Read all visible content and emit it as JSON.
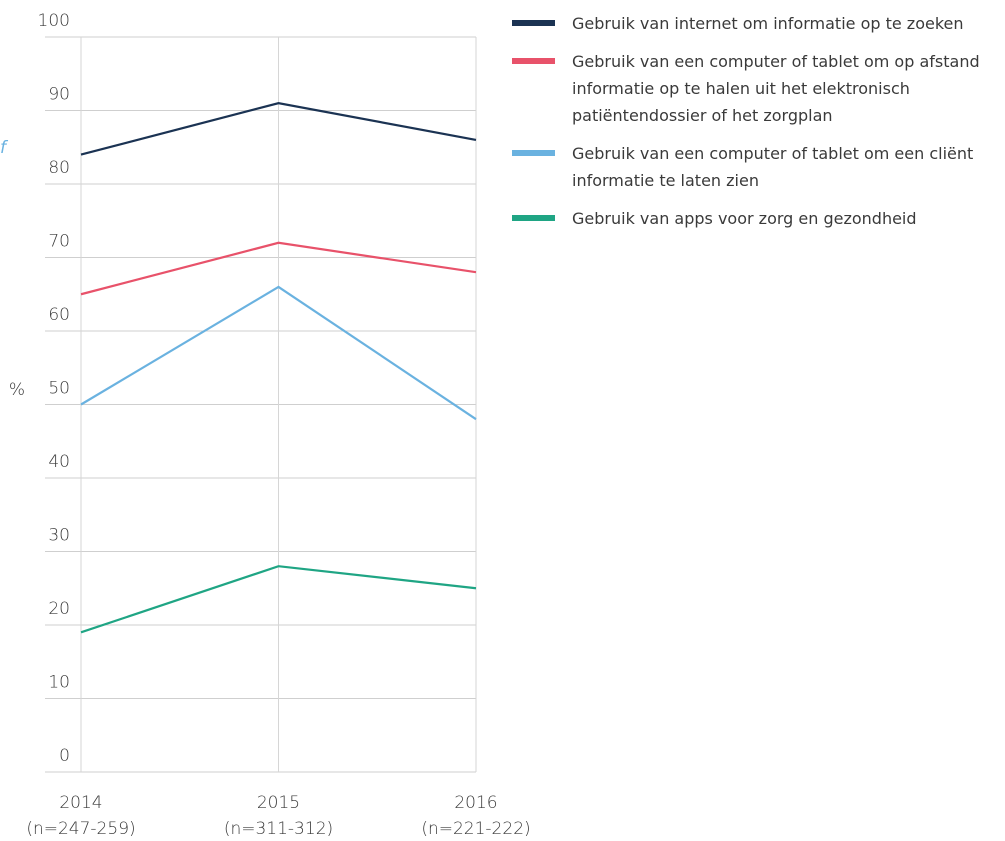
{
  "chart_data": {
    "type": "line",
    "y_label": "%",
    "annotation": "f",
    "categories": [
      "2014",
      "2015",
      "2016"
    ],
    "sample_sizes": [
      "(n=247-259)",
      "(n=311-312)",
      "(n=221-222)"
    ],
    "ylim": [
      0,
      100
    ],
    "yticks": [
      0,
      10,
      20,
      30,
      40,
      50,
      60,
      70,
      80,
      90,
      100
    ],
    "grid": true,
    "legend": "right",
    "series": [
      {
        "name": "Gebruik van internet om informatie op te zoeken",
        "color": "#1b3353",
        "values": [
          84,
          91,
          86
        ]
      },
      {
        "name": "Gebruik van een computer of tablet om op afstand informatie op te halen uit het elektronisch patiëntendossier of het zorgplan",
        "color": "#e8526a",
        "values": [
          65,
          72,
          68
        ]
      },
      {
        "name": "Gebruik van een computer of tablet om een cliënt informatie te laten zien",
        "color": "#6ab2e0",
        "values": [
          50,
          66,
          48
        ]
      },
      {
        "name": "Gebruik van apps voor zorg en gezondheid",
        "color": "#1fa584",
        "values": [
          19,
          28,
          25
        ]
      }
    ]
  }
}
